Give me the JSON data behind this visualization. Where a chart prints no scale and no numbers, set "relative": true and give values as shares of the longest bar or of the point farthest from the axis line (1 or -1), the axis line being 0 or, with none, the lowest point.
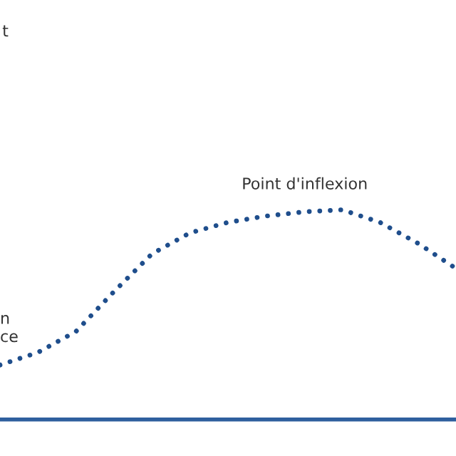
{
  "chart_data": {
    "type": "line",
    "relative": true,
    "categories": [
      null,
      null,
      null,
      null,
      null,
      null,
      null,
      null,
      null,
      null,
      null,
      null,
      null
    ],
    "series": [
      {
        "color": "#1f4e8c",
        "values": [
          0.26,
          0.32,
          0.42,
          0.61,
          0.79,
          0.89,
          0.94,
          0.97,
          0.99,
          1.0,
          0.94,
          0.84,
          0.72
        ]
      }
    ],
    "line_style": "dotted",
    "marker": "none",
    "grid": false,
    "legend": false,
    "annotations": [
      "t",
      "n",
      "ce",
      "Point d'inflexion"
    ]
  }
}
